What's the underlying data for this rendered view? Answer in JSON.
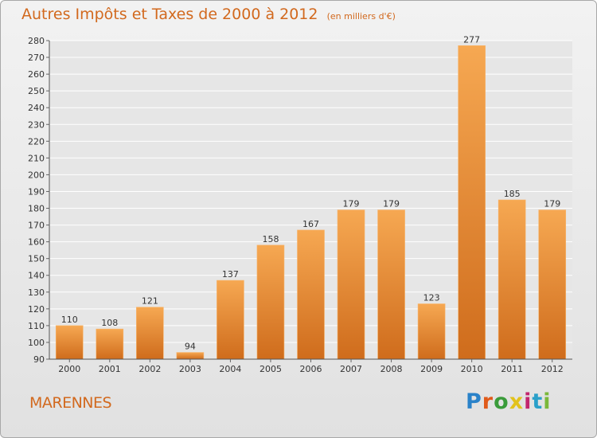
{
  "header": {
    "title": "Autres Impôts et Taxes de 2000 à 2012",
    "subtitle": "(en milliers d'€)"
  },
  "footer": {
    "town": "MARENNES",
    "brand": "Proxiti",
    "brand_colors": [
      "#2a82c9",
      "#e05a1a",
      "#3a9b3a",
      "#e2c21c",
      "#c2256e",
      "#2aa0c9",
      "#7bb83a"
    ]
  },
  "colors": {
    "accent": "#d2691e",
    "bar_top": "#f6a852",
    "bar_bottom": "#cf6c1c"
  },
  "chart_data": {
    "type": "bar",
    "categories": [
      "2000",
      "2001",
      "2002",
      "2003",
      "2004",
      "2005",
      "2006",
      "2007",
      "2008",
      "2009",
      "2010",
      "2011",
      "2012"
    ],
    "values": [
      110,
      108,
      121,
      94,
      137,
      158,
      167,
      179,
      179,
      123,
      277,
      185,
      179
    ],
    "title": "Autres Impôts et Taxes de 2000 à 2012",
    "subtitle": "(en milliers d'€)",
    "xlabel": "",
    "ylabel": "",
    "ylim": [
      90,
      280
    ],
    "ytick_step": 10,
    "grid": true,
    "legend": "none"
  }
}
